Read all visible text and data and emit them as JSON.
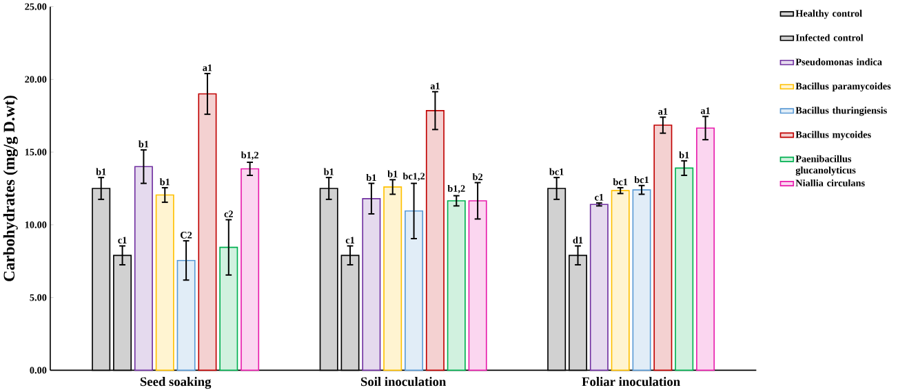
{
  "chart_data": {
    "type": "bar",
    "ylabel": "Carbohydrates (mg/g D.wt)",
    "categories": [
      "Seed soaking",
      "Soil inoculation",
      "Foliar inoculation"
    ],
    "ylim": [
      0,
      25
    ],
    "yticks": [
      {
        "value": 0,
        "label": "0.00"
      },
      {
        "value": 5,
        "label": "5.00"
      },
      {
        "value": 10,
        "label": "10.00"
      },
      {
        "value": 15,
        "label": "15.00"
      },
      {
        "value": 20,
        "label": "20.00"
      },
      {
        "value": 25,
        "label": "25.00"
      }
    ],
    "legend": "right",
    "grid": false,
    "series": [
      {
        "name": "Healthy control",
        "color": "#000000",
        "values": [
          12.5,
          12.5,
          12.5
        ],
        "errors": [
          0.75,
          0.75,
          0.75
        ],
        "value_labels": [
          "b1",
          "b1",
          "bc1"
        ]
      },
      {
        "name": "Infected control",
        "color": "#000000",
        "values": [
          7.9,
          7.9,
          7.9
        ],
        "errors": [
          0.65,
          0.65,
          0.65
        ],
        "value_labels": [
          "c1",
          "c1",
          "d1"
        ]
      },
      {
        "name": "Pseudomonas indica",
        "color": "#7030a0",
        "values": [
          14.0,
          11.8,
          11.4
        ],
        "errors": [
          1.15,
          1.05,
          0.1
        ],
        "value_labels": [
          "b1",
          "b1",
          "c1"
        ]
      },
      {
        "name": "Bacillus paramycoides",
        "color": "#ffc000",
        "values": [
          12.05,
          12.6,
          12.35
        ],
        "errors": [
          0.5,
          0.5,
          0.2
        ],
        "value_labels": [
          "b1",
          "b1",
          "bc1"
        ]
      },
      {
        "name": "Bacillus thuringiensis",
        "color": "#5b9bd5",
        "values": [
          7.55,
          10.95,
          12.4
        ],
        "errors": [
          1.35,
          1.9,
          0.3
        ],
        "value_labels": [
          "C2",
          "bc1,2",
          "bc1"
        ]
      },
      {
        "name": "Bacillus mycoides",
        "color": "#c00000",
        "values": [
          19.0,
          17.85,
          16.85
        ],
        "errors": [
          1.4,
          1.3,
          0.55
        ],
        "value_labels": [
          "a1",
          "a1",
          "a1"
        ]
      },
      {
        "name": "Paenibacillus glucanolyticus",
        "color": "#00b050",
        "values": [
          8.45,
          11.65,
          13.9
        ],
        "errors": [
          1.9,
          0.35,
          0.5
        ],
        "value_labels": [
          "c2",
          "b1,2",
          "b1"
        ]
      },
      {
        "name": "Niallia circulans",
        "color": "#e81cac",
        "values": [
          13.85,
          11.65,
          16.65
        ],
        "errors": [
          0.45,
          1.25,
          0.8
        ],
        "value_labels": [
          "b1,2",
          "b2",
          "a1"
        ]
      }
    ]
  }
}
